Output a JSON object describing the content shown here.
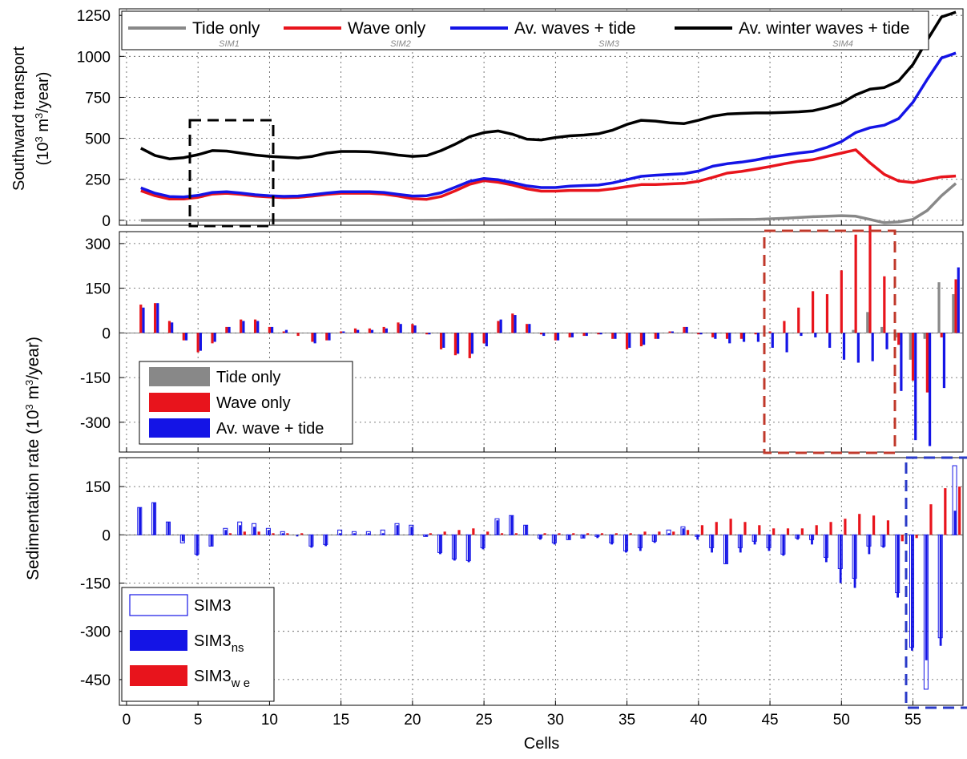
{
  "chart_data": [
    {
      "type": "line",
      "ylabel_line1": "Southward transport",
      "ylabel_line2_pre": "(10",
      "ylabel_line2_sup": "3",
      "ylabel_line2_mid": " m",
      "ylabel_line2_sup2": "3",
      "ylabel_line2_post": "/year)",
      "ylim": [
        -30,
        1290
      ],
      "yticks": [
        0,
        250,
        500,
        750,
        1000,
        1250
      ],
      "grid": true,
      "legend_position": "top",
      "colors": {
        "tide": "#888888",
        "wave": "#e8141c",
        "av": "#1414e6",
        "winter": "#000000"
      },
      "series": [
        {
          "name": "Tide only",
          "sub": "SIM1",
          "color_key": "tide",
          "x": [
            1,
            5,
            10,
            15,
            20,
            25,
            30,
            35,
            40,
            44,
            46,
            48,
            50,
            51,
            52,
            53,
            54,
            55,
            56,
            57,
            58
          ],
          "y": [
            0,
            0,
            0,
            0,
            0,
            2,
            3,
            3,
            3,
            5,
            12,
            22,
            28,
            25,
            5,
            -15,
            -10,
            5,
            60,
            150,
            225
          ]
        },
        {
          "name": "Wave only",
          "sub": "SIM2",
          "color_key": "wave",
          "x": [
            1,
            2,
            3,
            4,
            5,
            6,
            7,
            8,
            9,
            10,
            11,
            12,
            13,
            14,
            15,
            16,
            17,
            18,
            19,
            20,
            21,
            22,
            23,
            24,
            25,
            26,
            27,
            28,
            29,
            30,
            31,
            32,
            33,
            34,
            35,
            36,
            37,
            38,
            39,
            40,
            41,
            42,
            43,
            44,
            45,
            46,
            47,
            48,
            49,
            50,
            51,
            52,
            53,
            54,
            55,
            56,
            57,
            58
          ],
          "y": [
            180,
            150,
            130,
            130,
            140,
            160,
            165,
            158,
            148,
            142,
            138,
            140,
            148,
            158,
            165,
            165,
            165,
            160,
            148,
            132,
            128,
            145,
            180,
            220,
            242,
            232,
            215,
            192,
            178,
            178,
            182,
            182,
            182,
            192,
            205,
            218,
            218,
            222,
            225,
            238,
            262,
            288,
            298,
            312,
            328,
            345,
            360,
            370,
            390,
            410,
            430,
            350,
            280,
            240,
            230,
            248,
            265,
            270
          ]
        },
        {
          "name": "Av. waves + tide",
          "sub": "SIM3",
          "color_key": "av",
          "x": [
            1,
            2,
            3,
            4,
            5,
            6,
            7,
            8,
            9,
            10,
            11,
            12,
            13,
            14,
            15,
            16,
            17,
            18,
            19,
            20,
            21,
            22,
            23,
            24,
            25,
            26,
            27,
            28,
            29,
            30,
            31,
            32,
            33,
            34,
            35,
            36,
            37,
            38,
            39,
            40,
            41,
            42,
            43,
            44,
            45,
            46,
            47,
            48,
            49,
            50,
            51,
            52,
            53,
            54,
            55,
            56,
            57,
            58
          ],
          "y": [
            198,
            165,
            145,
            142,
            152,
            170,
            174,
            166,
            156,
            150,
            146,
            148,
            156,
            166,
            174,
            174,
            174,
            170,
            158,
            148,
            150,
            168,
            202,
            238,
            255,
            247,
            230,
            210,
            200,
            200,
            208,
            212,
            215,
            228,
            248,
            268,
            275,
            280,
            285,
            300,
            330,
            345,
            355,
            368,
            385,
            398,
            410,
            420,
            445,
            480,
            535,
            565,
            580,
            620,
            720,
            860,
            990,
            1020
          ]
        },
        {
          "name": "Av. winter waves + tide",
          "sub": "SIM4",
          "color_key": "winter",
          "x": [
            1,
            2,
            3,
            4,
            5,
            6,
            7,
            8,
            9,
            10,
            11,
            12,
            13,
            14,
            15,
            16,
            17,
            18,
            19,
            20,
            21,
            22,
            23,
            24,
            25,
            26,
            27,
            28,
            29,
            30,
            31,
            32,
            33,
            34,
            35,
            36,
            37,
            38,
            39,
            40,
            41,
            42,
            43,
            44,
            45,
            46,
            47,
            48,
            49,
            50,
            51,
            52,
            53,
            54,
            55,
            56,
            57,
            58
          ],
          "y": [
            440,
            395,
            375,
            382,
            400,
            425,
            422,
            410,
            398,
            390,
            385,
            380,
            390,
            410,
            420,
            420,
            418,
            410,
            398,
            390,
            395,
            425,
            465,
            510,
            535,
            545,
            525,
            495,
            490,
            505,
            515,
            520,
            528,
            550,
            585,
            610,
            605,
            595,
            590,
            610,
            635,
            648,
            652,
            655,
            655,
            658,
            662,
            668,
            688,
            715,
            765,
            800,
            810,
            850,
            950,
            1100,
            1240,
            1270
          ]
        }
      ]
    },
    {
      "type": "bar",
      "ylim": [
        -400,
        340
      ],
      "yticks": [
        -300,
        -150,
        0,
        150,
        300
      ],
      "grid": true,
      "legend_position": "bottom-left",
      "legend": [
        "Tide only",
        "Wave only",
        "Av. wave + tide"
      ],
      "x": [
        1,
        2,
        3,
        4,
        5,
        6,
        7,
        8,
        9,
        10,
        11,
        12,
        13,
        14,
        15,
        16,
        17,
        18,
        19,
        20,
        21,
        22,
        23,
        24,
        25,
        26,
        27,
        28,
        29,
        30,
        31,
        32,
        33,
        34,
        35,
        36,
        37,
        38,
        39,
        40,
        41,
        42,
        43,
        44,
        45,
        46,
        47,
        48,
        49,
        50,
        51,
        52,
        53,
        54,
        55,
        56,
        57,
        58
      ],
      "series": [
        {
          "name": "Tide only",
          "color_key": "tide",
          "values": [
            0,
            0,
            0,
            0,
            0,
            0,
            0,
            0,
            0,
            0,
            0,
            0,
            0,
            0,
            0,
            0,
            0,
            0,
            0,
            0,
            0,
            0,
            0,
            0,
            0,
            0,
            0,
            0,
            0,
            0,
            0,
            0,
            0,
            0,
            0,
            0,
            0,
            0,
            0,
            0,
            0,
            0,
            0,
            0,
            0,
            0,
            0,
            0,
            0,
            0,
            10,
            70,
            20,
            -15,
            -90,
            -20,
            170,
            130
          ]
        },
        {
          "name": "Wave only",
          "color_key": "wave",
          "values": [
            95,
            100,
            40,
            -25,
            -65,
            -35,
            20,
            45,
            45,
            20,
            5,
            -10,
            -30,
            -25,
            5,
            15,
            15,
            20,
            35,
            30,
            -5,
            -55,
            -75,
            -85,
            -35,
            40,
            65,
            30,
            -5,
            -25,
            -15,
            -10,
            -5,
            -20,
            -55,
            -45,
            -20,
            5,
            20,
            -5,
            -15,
            -20,
            -20,
            -5,
            5,
            40,
            85,
            140,
            130,
            210,
            330,
            360,
            190,
            -40,
            -160,
            -200,
            -15,
            180
          ]
        },
        {
          "name": "Av. wave + tide",
          "color_key": "av",
          "values": [
            85,
            100,
            35,
            -25,
            -60,
            -30,
            20,
            40,
            40,
            20,
            10,
            0,
            -35,
            -25,
            5,
            10,
            10,
            15,
            30,
            25,
            -5,
            -50,
            -70,
            -70,
            -45,
            45,
            60,
            30,
            -10,
            -25,
            -15,
            -10,
            -5,
            -20,
            -50,
            -40,
            -20,
            5,
            20,
            -5,
            -20,
            -35,
            -30,
            -30,
            -50,
            -65,
            -10,
            -15,
            -50,
            -90,
            -100,
            -95,
            -55,
            -195,
            -360,
            -380,
            -185,
            220
          ]
        }
      ]
    },
    {
      "type": "bar",
      "xlabel": "Cells",
      "ylabel_pre": "Sedimentation rate  (10",
      "ylabel_sup": "3",
      "ylabel_mid": " m",
      "ylabel_sup2": "3",
      "ylabel_post": "/year)",
      "ylim": [
        -530,
        240
      ],
      "yticks": [
        -450,
        -300,
        -150,
        0,
        150
      ],
      "xticks": [
        0,
        5,
        10,
        15,
        20,
        25,
        30,
        35,
        40,
        45,
        50,
        55
      ],
      "xlim": [
        -0.5,
        58.5
      ],
      "grid": true,
      "legend_position": "bottom-left",
      "legend": [
        {
          "main": "SIM3",
          "sub": ""
        },
        {
          "main": "SIM3",
          "sub": "ns"
        },
        {
          "main": "SIM3",
          "sub": "w e"
        }
      ],
      "x": [
        1,
        2,
        3,
        4,
        5,
        6,
        7,
        8,
        9,
        10,
        11,
        12,
        13,
        14,
        15,
        16,
        17,
        18,
        19,
        20,
        21,
        22,
        23,
        24,
        25,
        26,
        27,
        28,
        29,
        30,
        31,
        32,
        33,
        34,
        35,
        36,
        37,
        38,
        39,
        40,
        41,
        42,
        43,
        44,
        45,
        46,
        47,
        48,
        49,
        50,
        51,
        52,
        53,
        54,
        55,
        56,
        57,
        58
      ],
      "series": [
        {
          "name": "SIM3",
          "color_key": "av",
          "values": [
            85,
            100,
            40,
            -25,
            -60,
            -35,
            20,
            40,
            35,
            20,
            10,
            0,
            -35,
            -30,
            15,
            10,
            10,
            15,
            35,
            30,
            -5,
            -55,
            -75,
            -80,
            -40,
            50,
            60,
            30,
            -10,
            -25,
            -15,
            -10,
            -5,
            -25,
            -50,
            -40,
            -20,
            15,
            25,
            -5,
            -40,
            -90,
            -40,
            -20,
            -40,
            -60,
            -10,
            -15,
            -70,
            -105,
            -135,
            -35,
            -35,
            -180,
            -350,
            -480,
            -320,
            215
          ]
        },
        {
          "name": "SIM3_ns",
          "color_key": "av",
          "values": [
            85,
            100,
            40,
            -20,
            -65,
            -35,
            15,
            30,
            25,
            15,
            5,
            -5,
            -40,
            -35,
            5,
            5,
            5,
            5,
            30,
            25,
            -5,
            -60,
            -80,
            -85,
            -45,
            45,
            60,
            30,
            -15,
            -30,
            -15,
            -10,
            -10,
            -30,
            -55,
            -50,
            -25,
            5,
            20,
            -15,
            -55,
            -90,
            -55,
            -30,
            -50,
            -65,
            -15,
            -30,
            -85,
            -150,
            -165,
            -60,
            -40,
            -195,
            -360,
            -390,
            -345,
            75
          ]
        },
        {
          "name": "SIM3_we",
          "color_key": "wave",
          "values": [
            0,
            0,
            0,
            0,
            0,
            0,
            5,
            10,
            10,
            5,
            5,
            5,
            0,
            0,
            0,
            0,
            0,
            0,
            0,
            0,
            5,
            10,
            15,
            20,
            10,
            5,
            5,
            0,
            5,
            5,
            5,
            5,
            5,
            5,
            5,
            10,
            10,
            10,
            15,
            30,
            40,
            50,
            40,
            30,
            20,
            20,
            20,
            30,
            40,
            50,
            65,
            60,
            45,
            -20,
            -10,
            95,
            145,
            150
          ]
        }
      ]
    }
  ]
}
